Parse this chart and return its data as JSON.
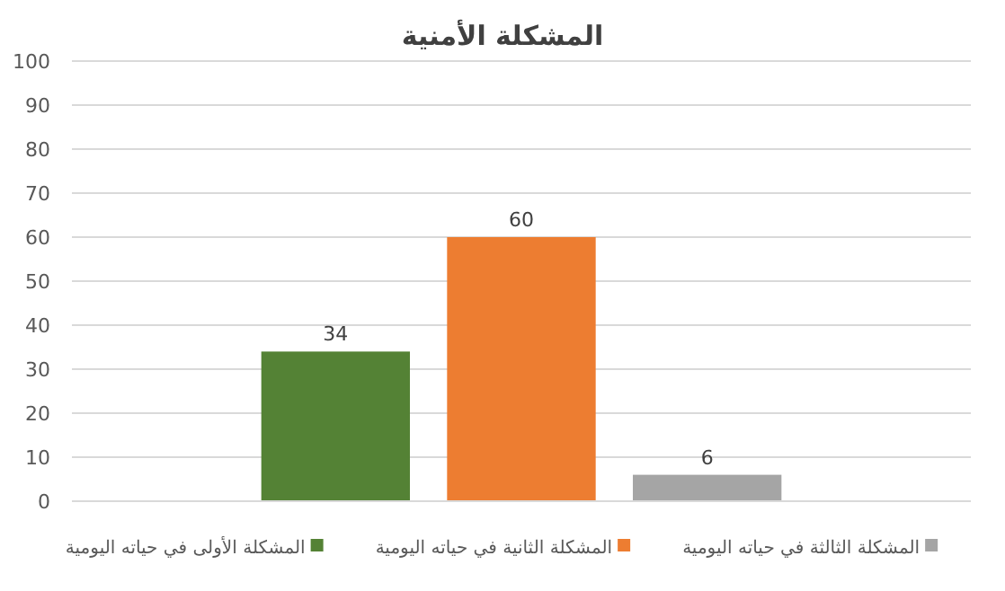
{
  "chart_data": {
    "type": "bar",
    "title": "المشكلة الأمنية",
    "categories": [
      null
    ],
    "series": [
      {
        "name": "المشكلة الأولى في حياته اليومية",
        "color": "#548235",
        "values": [
          34
        ]
      },
      {
        "name": "المشكلة الثانية في حياته اليومية",
        "color": "#ed7d31",
        "values": [
          60
        ]
      },
      {
        "name": "المشكلة الثالثة في حياته اليومية",
        "color": "#a5a5a5",
        "values": [
          6
        ]
      }
    ],
    "ylim": [
      0,
      100
    ],
    "yticks": [
      0,
      10,
      20,
      30,
      40,
      50,
      60,
      70,
      80,
      90,
      100
    ],
    "grid": "y",
    "legend": "bottom",
    "data_labels": true
  }
}
